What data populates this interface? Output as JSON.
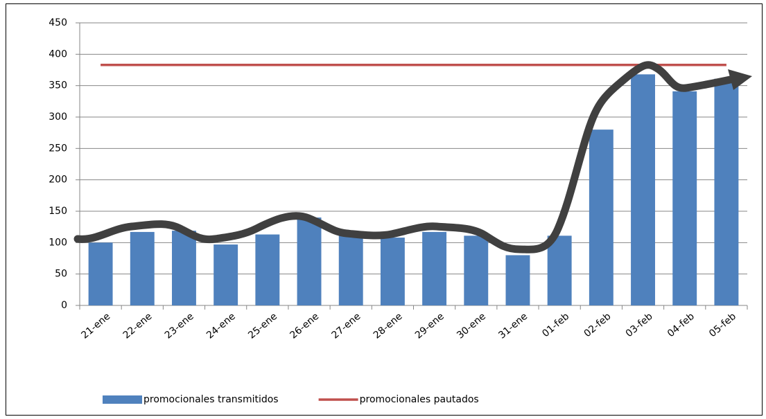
{
  "chart_data": {
    "type": "bar",
    "categories": [
      "21-ene",
      "22-ene",
      "23-ene",
      "24-ene",
      "25-ene",
      "26-ene",
      "27-ene",
      "28-ene",
      "29-ene",
      "30-ene",
      "31-ene",
      "01-feb",
      "02-feb",
      "03-feb",
      "04-feb",
      "05-feb"
    ],
    "series": [
      {
        "name": "promocionales transmitidos",
        "type": "bar",
        "color": "#4f81bd",
        "values": [
          100,
          117,
          119,
          97,
          113,
          140,
          113,
          108,
          117,
          111,
          80,
          111,
          280,
          368,
          341,
          361
        ]
      },
      {
        "name": "promocionales pautados",
        "type": "line",
        "color": "#c0504d",
        "values": [
          383,
          383,
          383,
          383,
          383,
          383,
          383,
          383,
          383,
          383,
          383,
          383,
          383,
          383,
          383,
          383
        ]
      }
    ],
    "ylim": [
      0,
      450
    ],
    "yticks": [
      0,
      50,
      100,
      150,
      200,
      250,
      300,
      350,
      400,
      450
    ],
    "grid": true,
    "legend": "bottom"
  }
}
